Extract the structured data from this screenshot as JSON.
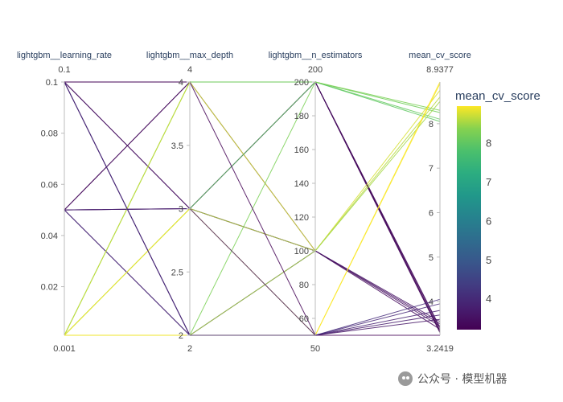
{
  "chart_data": {
    "type": "parallel_coordinates",
    "dimensions": [
      {
        "label": "lightgbm__learning_rate",
        "range": [
          0.001,
          0.1
        ],
        "min_label": "0.001",
        "max_label": "0.1",
        "ticks": [
          "0.02",
          "0.04",
          "0.06",
          "0.08",
          "0.1"
        ]
      },
      {
        "label": "lightgbm__max_depth",
        "range": [
          2,
          4
        ],
        "min_label": "2",
        "max_label": "4",
        "ticks": [
          "2",
          "2.5",
          "3",
          "3.5",
          "4"
        ]
      },
      {
        "label": "lightgbm__n_estimators",
        "range": [
          50,
          200
        ],
        "min_label": "50",
        "max_label": "200",
        "ticks": [
          "60",
          "80",
          "100",
          "120",
          "140",
          "160",
          "180",
          "200"
        ]
      },
      {
        "label": "mean_cv_score",
        "range": [
          3.2419,
          8.9377
        ],
        "min_label": "3.2419",
        "max_label": "8.9377",
        "ticks": [
          "4",
          "5",
          "6",
          "7",
          "8"
        ]
      }
    ],
    "lines": [
      [
        0.1,
        4,
        200,
        3.3
      ],
      [
        0.1,
        4,
        200,
        3.35
      ],
      [
        0.1,
        3,
        200,
        3.4
      ],
      [
        0.1,
        3,
        100,
        3.45
      ],
      [
        0.1,
        2,
        100,
        3.5
      ],
      [
        0.1,
        2,
        50,
        3.6
      ],
      [
        0.05,
        4,
        200,
        3.32
      ],
      [
        0.05,
        4,
        100,
        3.38
      ],
      [
        0.05,
        3,
        200,
        3.42
      ],
      [
        0.05,
        3,
        100,
        3.55
      ],
      [
        0.05,
        2,
        50,
        3.7
      ],
      [
        0.05,
        2,
        50,
        3.95
      ],
      [
        0.001,
        4,
        200,
        8.1
      ],
      [
        0.001,
        4,
        200,
        8.25
      ],
      [
        0.001,
        4,
        100,
        8.75
      ],
      [
        0.001,
        3,
        200,
        8.05
      ],
      [
        0.001,
        3,
        100,
        8.6
      ],
      [
        0.001,
        3,
        50,
        8.9
      ],
      [
        0.001,
        2,
        200,
        8.3
      ],
      [
        0.001,
        2,
        100,
        8.5
      ],
      [
        0.001,
        2,
        50,
        8.9377
      ],
      [
        0.1,
        4,
        50,
        3.2419
      ],
      [
        0.05,
        3,
        50,
        3.8
      ],
      [
        0.1,
        2,
        50,
        4.05
      ]
    ],
    "color": {
      "dimension": "mean_cv_score",
      "colorscale": "viridis",
      "title": "mean_cv_score",
      "ticks": [
        "4",
        "5",
        "6",
        "7",
        "8"
      ]
    }
  },
  "watermark": {
    "text": "公众号 · 模型机器"
  }
}
